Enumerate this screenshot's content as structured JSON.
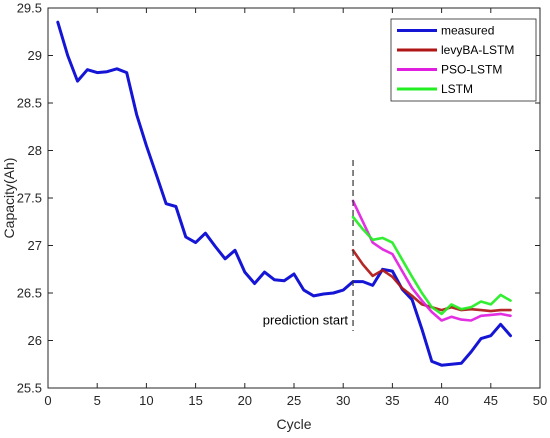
{
  "chart_data": {
    "type": "line",
    "xlabel": "Cycle",
    "ylabel": "Capacity(Ah)",
    "xlim": [
      0,
      50
    ],
    "ylim": [
      25.5,
      29.5
    ],
    "xticks": [
      "0",
      "5",
      "10",
      "15",
      "20",
      "25",
      "30",
      "35",
      "40",
      "45",
      "50"
    ],
    "yticks": [
      "25.5",
      "26",
      "26.5",
      "27",
      "27.5",
      "28",
      "28.5",
      "29",
      "29.5"
    ],
    "grid": false,
    "legend_position": "top-right",
    "annotation": {
      "text": "prediction start",
      "x": 31
    },
    "series": [
      {
        "name": "measured",
        "color": "#1515d6",
        "x": [
          1,
          2,
          3,
          4,
          5,
          6,
          7,
          8,
          9,
          10,
          11,
          12,
          13,
          14,
          15,
          16,
          17,
          18,
          19,
          20,
          21,
          22,
          23,
          24,
          25,
          26,
          27,
          28,
          29,
          30,
          31,
          32,
          33,
          34,
          35,
          36,
          37,
          38,
          39,
          40,
          41,
          42,
          43,
          44,
          45,
          46,
          47
        ],
        "y": [
          29.35,
          29.0,
          28.73,
          28.85,
          28.82,
          28.83,
          28.86,
          28.82,
          28.38,
          28.05,
          27.75,
          27.44,
          27.41,
          27.09,
          27.03,
          27.13,
          26.99,
          26.86,
          26.95,
          26.72,
          26.6,
          26.72,
          26.64,
          26.63,
          26.7,
          26.53,
          26.47,
          26.49,
          26.5,
          26.53,
          26.62,
          26.62,
          26.58,
          26.75,
          26.73,
          26.54,
          26.43,
          26.12,
          25.78,
          25.74,
          25.75,
          25.76,
          25.88,
          26.02,
          26.05,
          26.17,
          26.05
        ]
      },
      {
        "name": "levyBA-LSTM",
        "color": "#b01515",
        "x": [
          31,
          32,
          33,
          34,
          35,
          36,
          37,
          38,
          39,
          40,
          41,
          42,
          43,
          44,
          45,
          46,
          47
        ],
        "y": [
          26.95,
          26.8,
          26.68,
          26.74,
          26.67,
          26.55,
          26.47,
          26.38,
          26.35,
          26.32,
          26.35,
          26.32,
          26.33,
          26.32,
          26.31,
          26.32,
          26.32
        ]
      },
      {
        "name": "PSO-LSTM",
        "color": "#e01ee0",
        "x": [
          31,
          32,
          33,
          34,
          35,
          36,
          37,
          38,
          39,
          40,
          41,
          42,
          43,
          44,
          45,
          46,
          47
        ],
        "y": [
          27.47,
          27.25,
          27.03,
          26.96,
          26.91,
          26.73,
          26.55,
          26.42,
          26.3,
          26.21,
          26.25,
          26.22,
          26.21,
          26.26,
          26.27,
          26.28,
          26.26
        ]
      },
      {
        "name": "LSTM",
        "color": "#22ee22",
        "x": [
          31,
          32,
          33,
          34,
          35,
          36,
          37,
          38,
          39,
          40,
          41,
          42,
          43,
          44,
          45,
          46,
          47
        ],
        "y": [
          27.3,
          27.17,
          27.06,
          27.08,
          27.03,
          26.85,
          26.67,
          26.5,
          26.35,
          26.28,
          26.38,
          26.33,
          26.35,
          26.41,
          26.38,
          26.48,
          26.42
        ]
      }
    ]
  }
}
